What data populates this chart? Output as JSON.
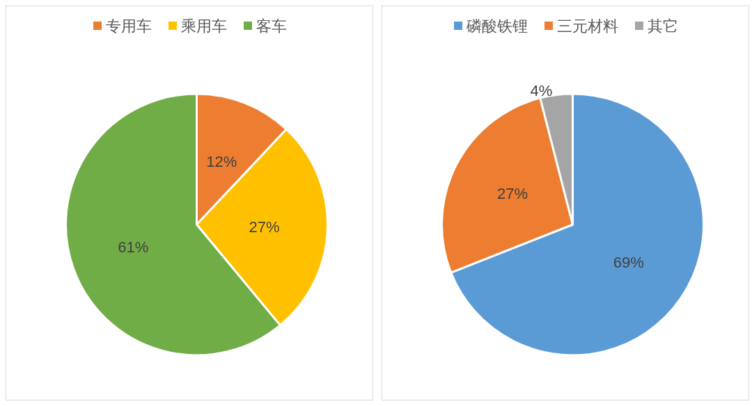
{
  "chart_data": [
    {
      "type": "pie",
      "categories": [
        "专用车",
        "乘用车",
        "客车"
      ],
      "values": [
        12,
        27,
        61
      ],
      "colors": [
        "#ed7d31",
        "#ffc000",
        "#70ad47"
      ],
      "value_labels": [
        "12%",
        "27%",
        "61%"
      ],
      "legend": "top"
    },
    {
      "type": "pie",
      "categories": [
        "磷酸铁锂",
        "三元材料",
        "其它"
      ],
      "values": [
        69,
        27,
        4
      ],
      "colors": [
        "#5b9bd5",
        "#ed7d31",
        "#a5a5a5"
      ],
      "value_labels": [
        "69%",
        "27%",
        "4%"
      ],
      "legend": "top"
    }
  ]
}
